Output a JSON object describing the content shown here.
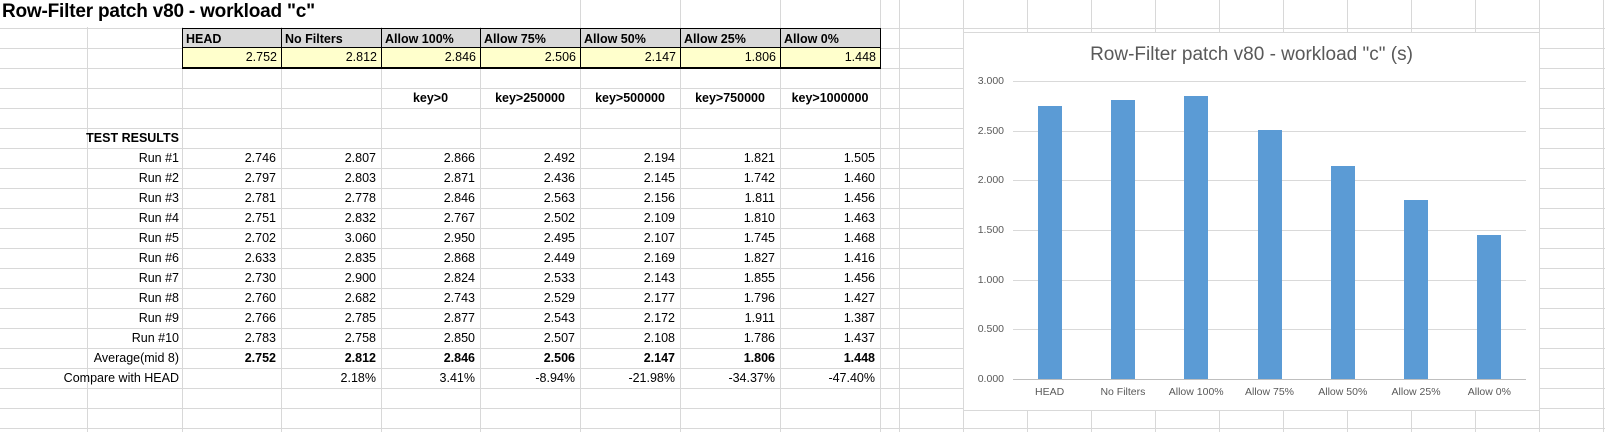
{
  "sheet_title": "Row-Filter patch v80 - workload \"c\"",
  "table": {
    "headers": [
      "HEAD",
      "No Filters",
      "Allow 100%",
      "Allow 75%",
      "Allow 50%",
      "Allow 25%",
      "Allow 0%"
    ],
    "summary_row": [
      "2.752",
      "2.812",
      "2.846",
      "2.506",
      "2.147",
      "1.806",
      "1.448"
    ],
    "filter_row": [
      "",
      "",
      "key>0",
      "key>250000",
      "key>500000",
      "key>750000",
      "key>1000000"
    ],
    "section_label": "TEST RESULTS",
    "runs": [
      {
        "label": "Run #1",
        "values": [
          "2.746",
          "2.807",
          "2.866",
          "2.492",
          "2.194",
          "1.821",
          "1.505"
        ]
      },
      {
        "label": "Run #2",
        "values": [
          "2.797",
          "2.803",
          "2.871",
          "2.436",
          "2.145",
          "1.742",
          "1.460"
        ]
      },
      {
        "label": "Run #3",
        "values": [
          "2.781",
          "2.778",
          "2.846",
          "2.563",
          "2.156",
          "1.811",
          "1.456"
        ]
      },
      {
        "label": "Run #4",
        "values": [
          "2.751",
          "2.832",
          "2.767",
          "2.502",
          "2.109",
          "1.810",
          "1.463"
        ]
      },
      {
        "label": "Run #5",
        "values": [
          "2.702",
          "3.060",
          "2.950",
          "2.495",
          "2.107",
          "1.745",
          "1.468"
        ]
      },
      {
        "label": "Run #6",
        "values": [
          "2.633",
          "2.835",
          "2.868",
          "2.449",
          "2.169",
          "1.827",
          "1.416"
        ]
      },
      {
        "label": "Run #7",
        "values": [
          "2.730",
          "2.900",
          "2.824",
          "2.533",
          "2.143",
          "1.855",
          "1.456"
        ]
      },
      {
        "label": "Run #8",
        "values": [
          "2.760",
          "2.682",
          "2.743",
          "2.529",
          "2.177",
          "1.796",
          "1.427"
        ]
      },
      {
        "label": "Run #9",
        "values": [
          "2.766",
          "2.785",
          "2.877",
          "2.543",
          "2.172",
          "1.911",
          "1.387"
        ]
      },
      {
        "label": "Run #10",
        "values": [
          "2.783",
          "2.758",
          "2.850",
          "2.507",
          "2.108",
          "1.786",
          "1.437"
        ]
      }
    ],
    "average": {
      "label": "Average(mid 8)",
      "values": [
        "2.752",
        "2.812",
        "2.846",
        "2.506",
        "2.147",
        "1.806",
        "1.448"
      ]
    },
    "compare": {
      "label": "Compare with HEAD",
      "values": [
        "",
        "2.18%",
        "3.41%",
        "-8.94%",
        "-21.98%",
        "-34.37%",
        "-47.40%"
      ]
    }
  },
  "chart_data": {
    "type": "bar",
    "title": "Row-Filter patch v80 - workload \"c\" (s)",
    "categories": [
      "HEAD",
      "No Filters",
      "Allow 100%",
      "Allow 75%",
      "Allow 50%",
      "Allow 25%",
      "Allow 0%"
    ],
    "values": [
      2.752,
      2.812,
      2.846,
      2.506,
      2.147,
      1.806,
      1.448
    ],
    "xlabel": "",
    "ylabel": "",
    "ylim": [
      0,
      3.0
    ],
    "ytick_step": 0.5,
    "ytick_labels": [
      "3.000",
      "2.500",
      "2.000",
      "1.500",
      "1.000",
      "0.500",
      "0.000"
    ],
    "grid": true,
    "legend": "none"
  },
  "colors": {
    "bar": "#5b9bd5",
    "header_fill": "#d9d9d9",
    "summary_fill": "#ffffcc",
    "sheet_gridline": "#d8d8d8",
    "chart_gridline": "#d9d9d9",
    "chart_axis": "#bfbfbf",
    "chart_text": "#595959"
  }
}
